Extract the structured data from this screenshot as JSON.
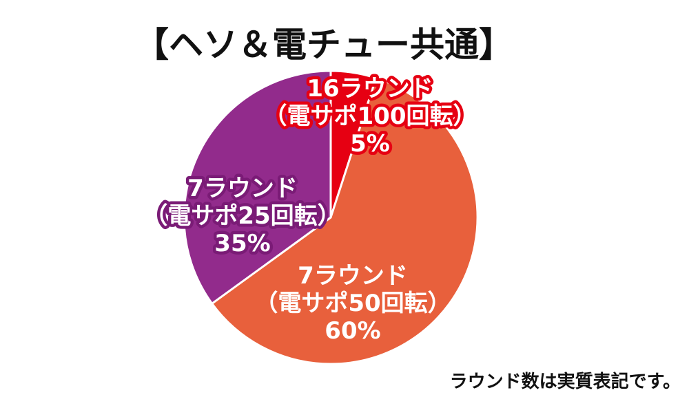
{
  "chart_data": {
    "type": "pie",
    "title": "【ヘソ＆電チュー共通】",
    "unit": "%",
    "slices": [
      {
        "label_lines": [
          "16ラウンド",
          "（電サポ100回転）"
        ],
        "value": 5,
        "value_label": "5%",
        "color": "#e60012",
        "outline": "#e60012"
      },
      {
        "label_lines": [
          "7ラウンド",
          "（電サポ50回転）"
        ],
        "value": 60,
        "value_label": "60%",
        "color": "#e8603c",
        "outline": "#e8603c"
      },
      {
        "label_lines": [
          "7ラウンド",
          "（電サポ25回転）"
        ],
        "value": 35,
        "value_label": "35%",
        "color": "#922b8c",
        "outline": "#7a1b76"
      }
    ],
    "note": "ラウンド数は実質表記です。"
  }
}
